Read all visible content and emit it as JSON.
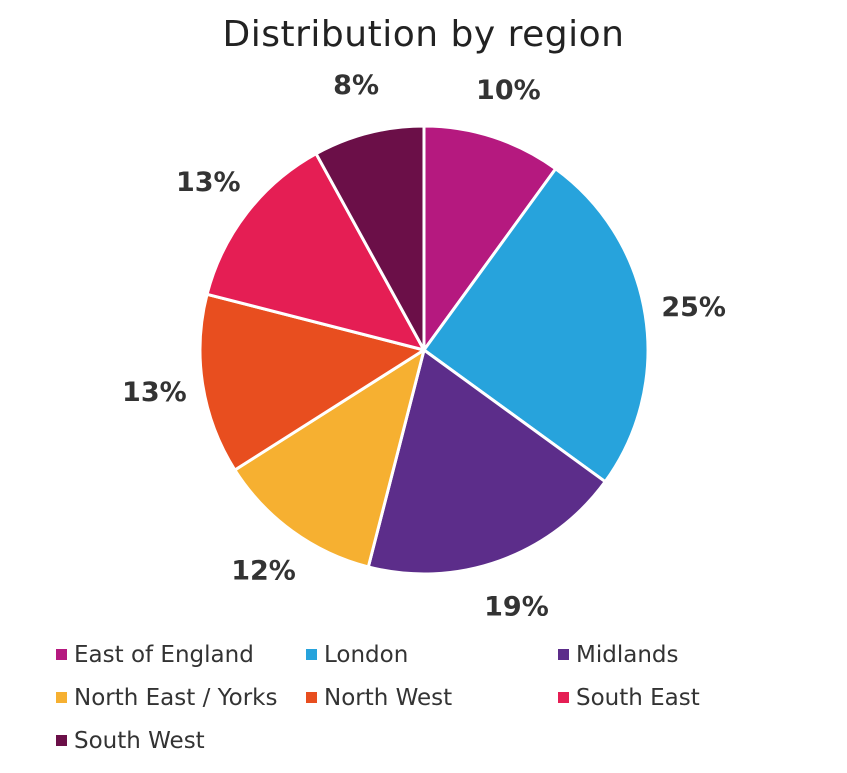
{
  "chart_data": {
    "type": "pie",
    "title": "Distribution by region",
    "slices": [
      {
        "label": "East of England",
        "value": 10,
        "display": "10%",
        "color": "#b5197f"
      },
      {
        "label": "London",
        "value": 25,
        "display": "25%",
        "color": "#27a3dc"
      },
      {
        "label": "Midlands",
        "value": 19,
        "display": "19%",
        "color": "#5c2d8a"
      },
      {
        "label": "North East / Yorks",
        "value": 12,
        "display": "12%",
        "color": "#f6b031"
      },
      {
        "label": "North West",
        "value": 13,
        "display": "13%",
        "color": "#e84e1f"
      },
      {
        "label": "South East",
        "value": 13,
        "display": "13%",
        "color": "#e51e54"
      },
      {
        "label": "South West",
        "value": 8,
        "display": "8%",
        "color": "#6b0f48"
      }
    ],
    "legend_position": "bottom"
  }
}
